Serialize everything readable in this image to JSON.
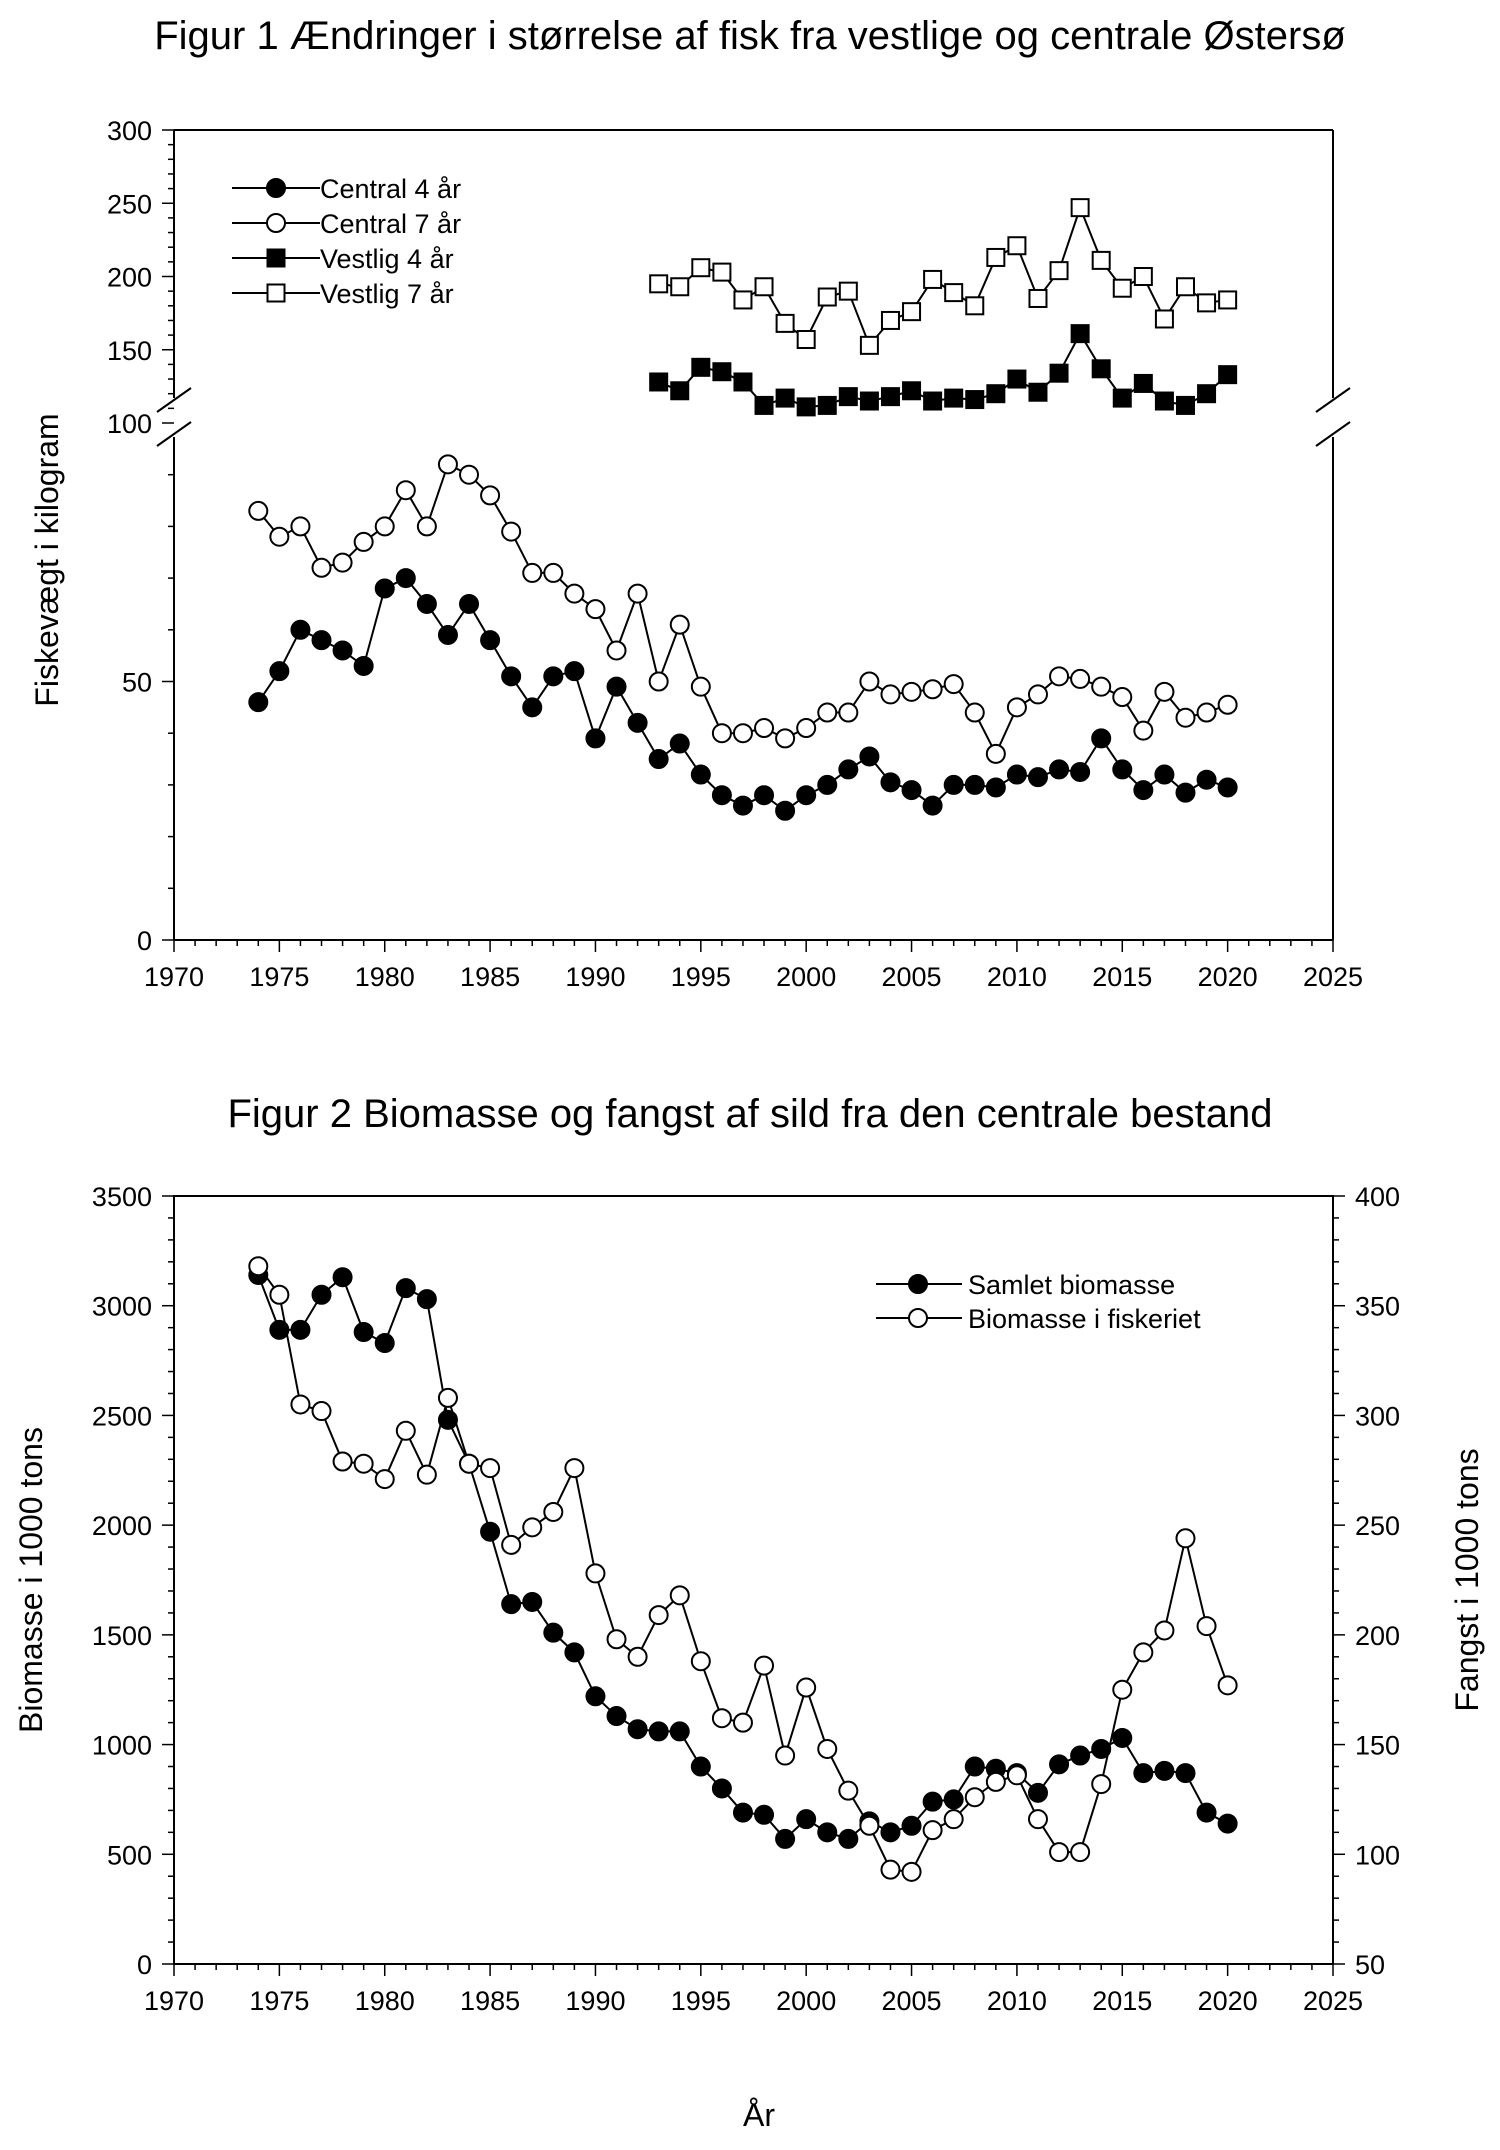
{
  "chart_data": [
    {
      "type": "line",
      "title": "Figur 1 Ændringer i størrelse af fisk fra vestlige og centrale Østersø",
      "xlabel": "",
      "ylabel": "Fiskevægt i kilogram",
      "xlim": [
        1970,
        2025
      ],
      "x_ticks": [
        "1970",
        "1975",
        "1980",
        "1985",
        "1990",
        "1995",
        "2000",
        "2005",
        "2010",
        "2015",
        "2020",
        "2025"
      ],
      "ylim_lower": [
        0,
        100
      ],
      "ylim_upper": [
        100,
        300
      ],
      "y_ticks_lower": [
        "0",
        "50",
        "100"
      ],
      "y_ticks_upper": [
        "150",
        "200",
        "250",
        "300"
      ],
      "axis_break": "y at 100",
      "legend_position": "top-left",
      "grid": false,
      "series": [
        {
          "name": "Central 4 år",
          "marker": "filled-circle",
          "x": [
            1974,
            1975,
            1976,
            1977,
            1978,
            1979,
            1980,
            1981,
            1982,
            1983,
            1984,
            1985,
            1986,
            1987,
            1988,
            1989,
            1990,
            1991,
            1992,
            1993,
            1994,
            1995,
            1996,
            1997,
            1998,
            1999,
            2000,
            2001,
            2002,
            2003,
            2004,
            2005,
            2006,
            2007,
            2008,
            2009,
            2010,
            2011,
            2012,
            2013,
            2014,
            2015,
            2016,
            2017,
            2018,
            2019,
            2020
          ],
          "y": [
            46,
            52,
            60,
            58,
            56,
            53,
            68,
            70,
            65,
            59,
            65,
            58,
            51,
            45,
            51,
            52,
            39,
            49,
            42,
            35,
            38,
            32,
            28,
            26,
            28,
            25,
            28,
            30,
            33,
            35.5,
            30.5,
            29,
            26,
            30,
            30,
            29.5,
            32,
            31.5,
            33,
            32.5,
            39,
            33,
            29,
            32,
            28.5,
            31,
            29.5
          ]
        },
        {
          "name": "Central 7 år",
          "marker": "open-circle",
          "x": [
            1974,
            1975,
            1976,
            1977,
            1978,
            1979,
            1980,
            1981,
            1982,
            1983,
            1984,
            1985,
            1986,
            1987,
            1988,
            1989,
            1990,
            1991,
            1992,
            1993,
            1994,
            1995,
            1996,
            1997,
            1998,
            1999,
            2000,
            2001,
            2002,
            2003,
            2004,
            2005,
            2006,
            2007,
            2008,
            2009,
            2010,
            2011,
            2012,
            2013,
            2014,
            2015,
            2016,
            2017,
            2018,
            2019,
            2020
          ],
          "y": [
            83,
            78,
            80,
            72,
            73,
            77,
            80,
            87,
            80,
            92,
            90,
            86,
            79,
            71,
            71,
            67,
            64,
            56,
            67,
            50,
            61,
            49,
            40,
            40,
            41,
            39,
            41,
            44,
            44,
            50,
            47.5,
            48,
            48.5,
            49.5,
            44,
            36,
            45,
            47.5,
            51,
            50.5,
            49,
            47,
            40.5,
            48,
            43,
            44,
            45.5
          ]
        },
        {
          "name": "Vestlig 4 år",
          "marker": "filled-square",
          "x": [
            1993,
            1994,
            1995,
            1996,
            1997,
            1998,
            1999,
            2000,
            2001,
            2002,
            2003,
            2004,
            2005,
            2006,
            2007,
            2008,
            2009,
            2010,
            2011,
            2012,
            2013,
            2014,
            2015,
            2016,
            2017,
            2018,
            2019,
            2020
          ],
          "y": [
            128,
            122,
            138,
            135,
            128,
            112,
            117,
            111,
            112,
            118,
            115,
            118,
            122,
            115,
            117,
            116,
            120,
            130,
            121,
            134,
            161,
            137,
            117,
            127,
            115,
            112,
            120,
            133
          ]
        },
        {
          "name": "Vestlig 7 år",
          "marker": "open-square",
          "x": [
            1993,
            1994,
            1995,
            1996,
            1997,
            1998,
            1999,
            2000,
            2001,
            2002,
            2003,
            2004,
            2005,
            2006,
            2007,
            2008,
            2009,
            2010,
            2011,
            2012,
            2013,
            2014,
            2015,
            2016,
            2017,
            2018,
            2019,
            2020
          ],
          "y": [
            195,
            193,
            206,
            203,
            184,
            193,
            168,
            157,
            186,
            190,
            153,
            170,
            176,
            198,
            189,
            180,
            213,
            221,
            185,
            204,
            247,
            211,
            192,
            200,
            171,
            193,
            182,
            184
          ]
        }
      ]
    },
    {
      "type": "line",
      "title": "Figur 2 Biomasse og fangst af sild fra den centrale bestand",
      "xlabel": "År",
      "ylabel": "Biomasse i 1000 tons",
      "ylabel_right": "Fangst i 1000 tons",
      "xlim": [
        1970,
        2025
      ],
      "x_ticks": [
        "1970",
        "1975",
        "1980",
        "1985",
        "1990",
        "1995",
        "2000",
        "2005",
        "2010",
        "2015",
        "2020",
        "2025"
      ],
      "ylim": [
        0,
        3500
      ],
      "ylim_right": [
        50,
        400
      ],
      "y_ticks": [
        "0",
        "500",
        "1000",
        "1500",
        "2000",
        "2500",
        "3000",
        "3500"
      ],
      "y_ticks_right": [
        "50",
        "100",
        "150",
        "200",
        "250",
        "300",
        "350",
        "400"
      ],
      "legend_position": "top-right",
      "grid": false,
      "series": [
        {
          "name": "Samlet biomasse",
          "marker": "filled-circle",
          "axis": "left",
          "x": [
            1974,
            1975,
            1976,
            1977,
            1978,
            1979,
            1980,
            1981,
            1982,
            1983,
            1984,
            1985,
            1986,
            1987,
            1988,
            1989,
            1990,
            1991,
            1992,
            1993,
            1994,
            1995,
            1996,
            1997,
            1998,
            1999,
            2000,
            2001,
            2002,
            2003,
            2004,
            2005,
            2006,
            2007,
            2008,
            2009,
            2010,
            2011,
            2012,
            2013,
            2014,
            2015,
            2016,
            2017,
            2018,
            2019,
            2020
          ],
          "y": [
            3140,
            2890,
            2890,
            3050,
            3130,
            2880,
            2830,
            3080,
            3030,
            2480,
            2280,
            1970,
            1640,
            1650,
            1510,
            1420,
            1220,
            1130,
            1070,
            1060,
            1060,
            900,
            800,
            690,
            680,
            570,
            660,
            600,
            570,
            650,
            600,
            630,
            740,
            750,
            900,
            890,
            870,
            780,
            910,
            950,
            980,
            1030,
            870,
            880,
            870,
            690,
            640
          ]
        },
        {
          "name": "Biomasse i fiskeriet",
          "marker": "open-circle",
          "axis": "right",
          "x": [
            1974,
            1975,
            1976,
            1977,
            1978,
            1979,
            1980,
            1981,
            1982,
            1983,
            1984,
            1985,
            1986,
            1987,
            1988,
            1989,
            1990,
            1991,
            1992,
            1993,
            1994,
            1995,
            1996,
            1997,
            1998,
            1999,
            2000,
            2001,
            2002,
            2003,
            2004,
            2005,
            2006,
            2007,
            2008,
            2009,
            2010,
            2011,
            2012,
            2013,
            2014,
            2015,
            2016,
            2017,
            2018,
            2019,
            2020
          ],
          "y": [
            368,
            355,
            305,
            302,
            279,
            278,
            271,
            293,
            273,
            308,
            278,
            276,
            241,
            249,
            256,
            276,
            228,
            198,
            190,
            209,
            218,
            188,
            162,
            160,
            186,
            145,
            176,
            148,
            129,
            113,
            93,
            92,
            111,
            116,
            126,
            133,
            136,
            116,
            101,
            101,
            132,
            175,
            192,
            202,
            244,
            204,
            177
          ]
        }
      ]
    }
  ]
}
